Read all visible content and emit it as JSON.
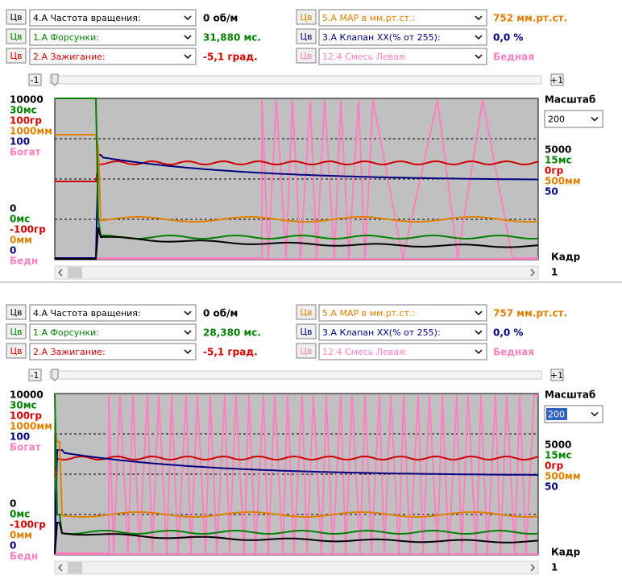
{
  "panels": [
    {
      "left_rows": [
        {
          "button": "Цв",
          "label": "4.А  Частота вращения:",
          "value": "0 об/м",
          "color": "#000000"
        },
        {
          "button": "Цв",
          "label": "1.А  Форсунки:",
          "value": "31,880 мс.",
          "color": "#008000"
        },
        {
          "button": "Цв",
          "label": "2.А  Зажигание:",
          "value": "-5,1 град.",
          "color": "#d00000"
        }
      ],
      "right_rows": [
        {
          "button": "Цв",
          "label": "5.А  МАР в мм.рт.ст.:",
          "value": "752 мм.рт.ст.",
          "color": "#e08000"
        },
        {
          "button": "Цв",
          "label": "3.А  Клапан ХХ(% от 255):",
          "value": "0,0 %",
          "color": "#000080"
        },
        {
          "button": "Цв",
          "label": "12.4  Смесь Левая:",
          "value": "Бедная",
          "color": "#ff80c0"
        }
      ],
      "step_back": "-1",
      "step_forward": "+1",
      "left_axis_top": [
        {
          "text": "10000",
          "color": "#000000"
        },
        {
          "text": "30мс",
          "color": "#008000"
        },
        {
          "text": "100гр",
          "color": "#d00000"
        },
        {
          "text": "1000мм",
          "color": "#e08000"
        },
        {
          "text": "100",
          "color": "#000080"
        },
        {
          "text": "Богат",
          "color": "#ff80c0"
        }
      ],
      "left_axis_bottom": [
        {
          "text": "0",
          "color": "#000000"
        },
        {
          "text": "0мс",
          "color": "#008000"
        },
        {
          "text": "-100гр",
          "color": "#d00000"
        },
        {
          "text": "0мм",
          "color": "#e08000"
        },
        {
          "text": "0",
          "color": "#000080"
        },
        {
          "text": "Бедн",
          "color": "#ff80c0"
        }
      ],
      "right_axis_mid": [
        {
          "text": "5000",
          "color": "#000000"
        },
        {
          "text": "15мс",
          "color": "#008000"
        },
        {
          "text": "0гр",
          "color": "#d00000"
        },
        {
          "text": "500мм",
          "color": "#e08000"
        },
        {
          "text": "50",
          "color": "#000080"
        }
      ],
      "scale_label": "Масштаб",
      "scale_value": "200",
      "frame_label": "Кадр",
      "frame_value": "1"
    },
    {
      "left_rows": [
        {
          "button": "Цв",
          "label": "4.А  Частота вращения:",
          "value": "0 об/м",
          "color": "#000000"
        },
        {
          "button": "Цв",
          "label": "1.А  Форсунки:",
          "value": "28,380 мс.",
          "color": "#008000"
        },
        {
          "button": "Цв",
          "label": "2.А  Зажигание:",
          "value": "-5,1 град.",
          "color": "#d00000"
        }
      ],
      "right_rows": [
        {
          "button": "Цв",
          "label": "5.А  МАР в мм.рт.ст.:",
          "value": "757 мм.рт.ст.",
          "color": "#e08000"
        },
        {
          "button": "Цв",
          "label": "3.А  Клапан ХХ(% от 255):",
          "value": "0,0 %",
          "color": "#000080"
        },
        {
          "button": "Цв",
          "label": "12.4  Смесь Левая:",
          "value": "Бедная",
          "color": "#ff80c0"
        }
      ],
      "step_back": "-1",
      "step_forward": "+1",
      "left_axis_top": [
        {
          "text": "10000",
          "color": "#000000"
        },
        {
          "text": "30мс",
          "color": "#008000"
        },
        {
          "text": "100гр",
          "color": "#d00000"
        },
        {
          "text": "1000мм",
          "color": "#e08000"
        },
        {
          "text": "100",
          "color": "#000080"
        },
        {
          "text": "Богат",
          "color": "#ff80c0"
        }
      ],
      "left_axis_bottom": [
        {
          "text": "0",
          "color": "#000000"
        },
        {
          "text": "0мс",
          "color": "#008000"
        },
        {
          "text": "-100гр",
          "color": "#d00000"
        },
        {
          "text": "0мм",
          "color": "#e08000"
        },
        {
          "text": "0",
          "color": "#000080"
        },
        {
          "text": "Бедн",
          "color": "#ff80c0"
        }
      ],
      "right_axis_mid": [
        {
          "text": "5000",
          "color": "#000000"
        },
        {
          "text": "15мс",
          "color": "#008000"
        },
        {
          "text": "0гр",
          "color": "#d00000"
        },
        {
          "text": "500мм",
          "color": "#e08000"
        },
        {
          "text": "50",
          "color": "#000080"
        }
      ],
      "scale_label": "Масштаб",
      "scale_value": "200",
      "frame_label": "Кадр",
      "frame_value": "1"
    }
  ]
}
